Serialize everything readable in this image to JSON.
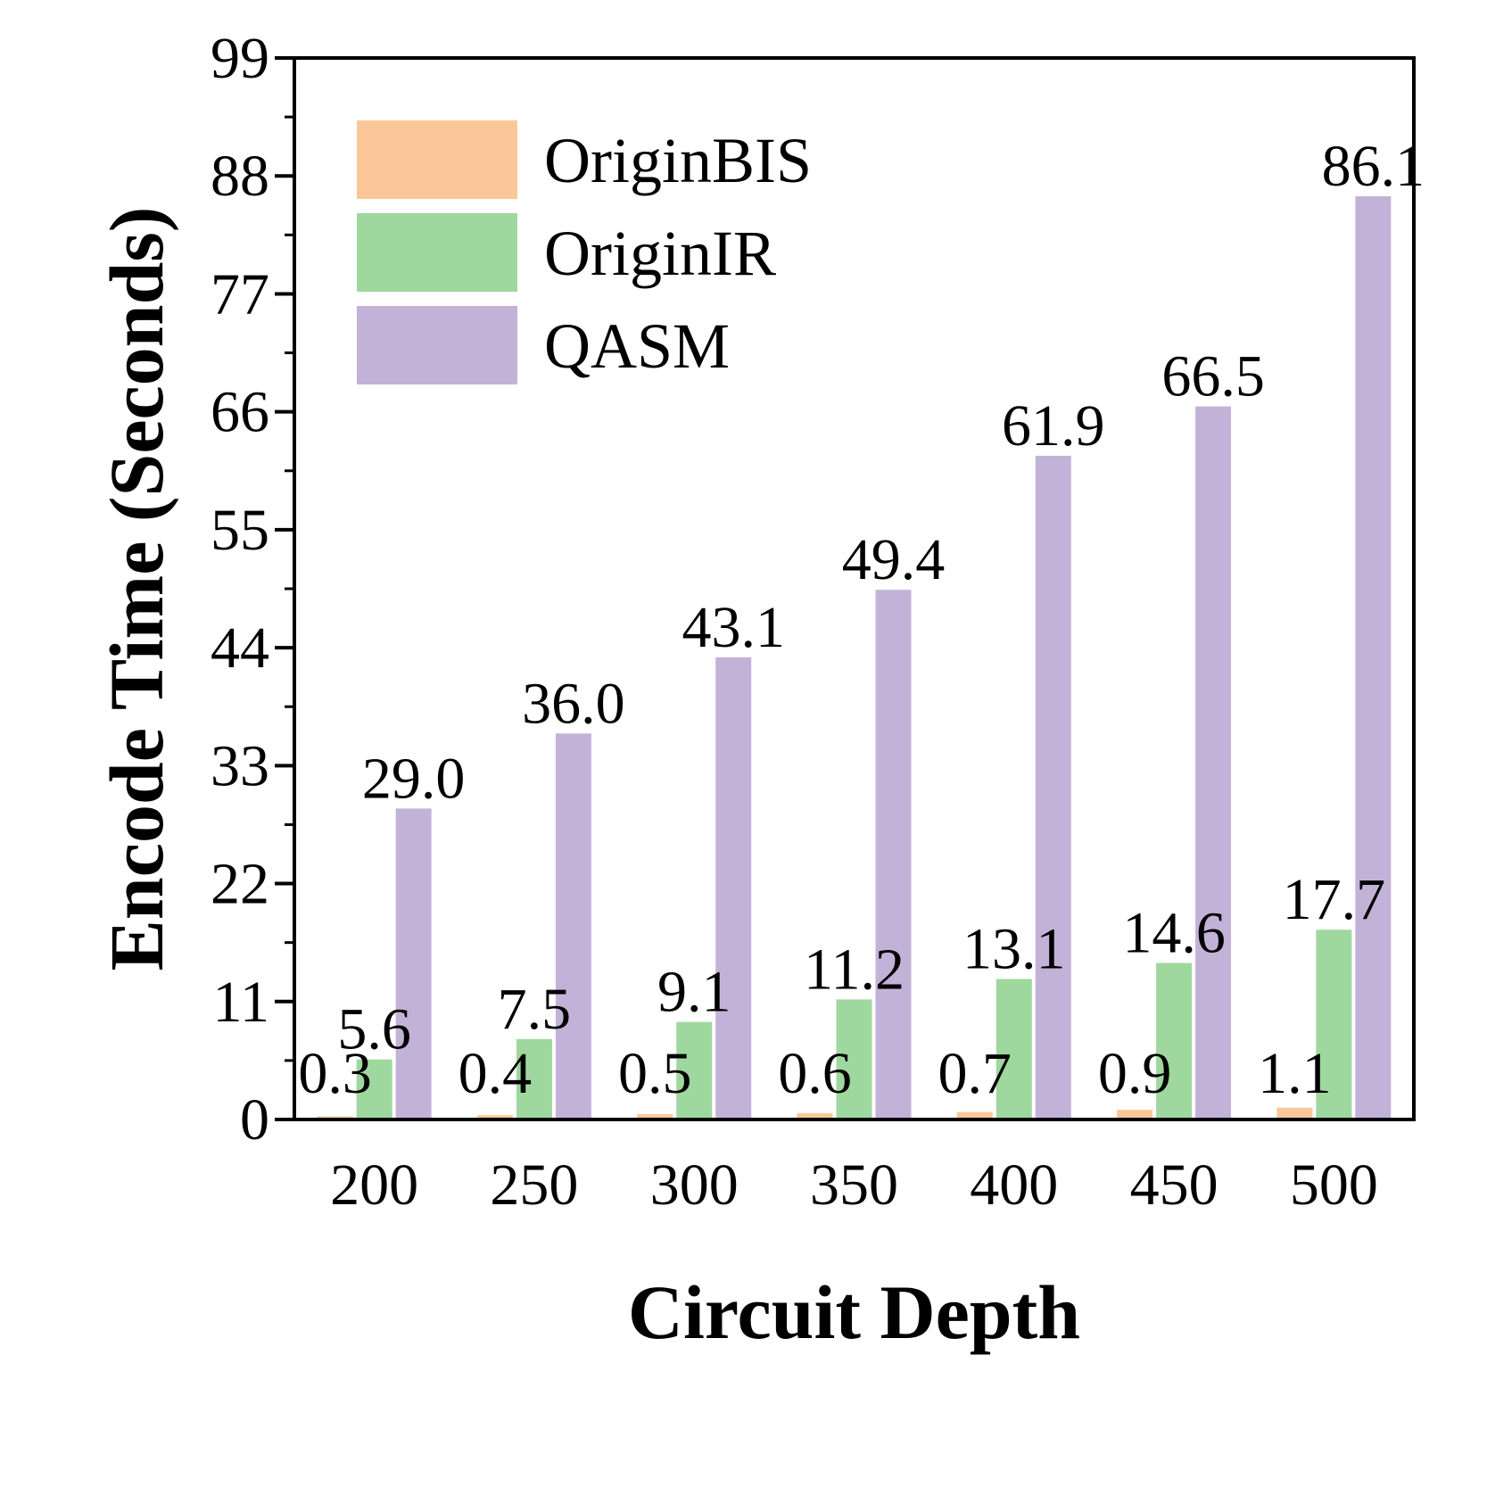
{
  "chart_data": {
    "type": "bar",
    "xlabel": "Circuit Depth",
    "ylabel": "Encode Time (Seconds)",
    "categories": [
      "200",
      "250",
      "300",
      "350",
      "400",
      "450",
      "500"
    ],
    "ylim": [
      0,
      99
    ],
    "yticks": [
      0,
      11,
      22,
      33,
      44,
      55,
      66,
      77,
      88,
      99
    ],
    "legend_position": "top-left",
    "grid": false,
    "series": [
      {
        "name": "OriginBIS",
        "color": "#fac898",
        "values": [
          0.3,
          0.4,
          0.5,
          0.6,
          0.7,
          0.9,
          1.1
        ],
        "labels": [
          "0.3",
          "0.4",
          "0.5",
          "0.6",
          "0.7",
          "0.9",
          "1.1"
        ]
      },
      {
        "name": "OriginIR",
        "color": "#9fd89e",
        "values": [
          5.6,
          7.5,
          9.1,
          11.2,
          13.1,
          14.6,
          17.7
        ],
        "labels": [
          "5.6",
          "7.5",
          "9.1",
          "11.2",
          "13.1",
          "14.6",
          "17.7"
        ]
      },
      {
        "name": "QASM",
        "color": "#c3b2d8",
        "values": [
          29.0,
          36.0,
          43.1,
          49.4,
          61.9,
          66.5,
          86.1
        ],
        "labels": [
          "29.0",
          "36.0",
          "43.1",
          "49.4",
          "61.9",
          "66.5",
          "86.1"
        ]
      }
    ]
  }
}
